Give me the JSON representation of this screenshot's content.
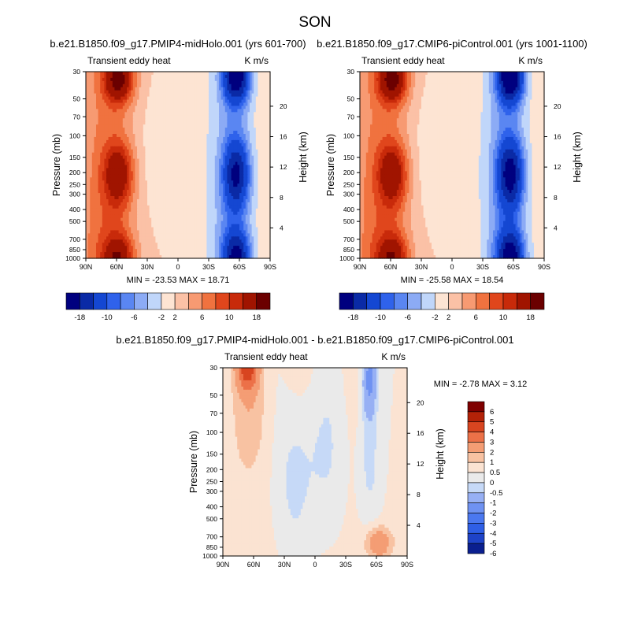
{
  "page": {
    "title": "SON"
  },
  "colors": {
    "standard": [
      "#00007f",
      "#0a2aa6",
      "#1447d2",
      "#2f62eb",
      "#5a86f2",
      "#8cabf5",
      "#c0d6fa",
      "#fde4d3",
      "#fbc1a6",
      "#f79a72",
      "#f0723f",
      "#e0461c",
      "#c82a0a",
      "#a01400",
      "#6b0000"
    ],
    "difference": [
      "#0a1f8f",
      "#1e43c8",
      "#2f5fe6",
      "#4b78f0",
      "#6f92f2",
      "#97b0f4",
      "#c6d9f7",
      "#eaeaea",
      "#fbe3d2",
      "#f8c2a2",
      "#f49d74",
      "#ec7148",
      "#d84520",
      "#b32208",
      "#7f0000"
    ]
  },
  "chart_data": [
    {
      "type": "contour",
      "title_center": "b.e21.B1850.f09_g17.PMIP4-midHolo.001 (yrs 601-700)",
      "title_left": "Transient eddy heat",
      "title_right": "K m/s",
      "ylabel": "Pressure (mb)",
      "ylabel_right": "Height (km)",
      "x_ticks": [
        "90N",
        "60N",
        "30N",
        "0",
        "30S",
        "60S",
        "90S"
      ],
      "y_ticks": [
        "30",
        "50",
        "70",
        "100",
        "150",
        "200",
        "250",
        "300",
        "400",
        "500",
        "700",
        "850",
        "1000"
      ],
      "y_ticks_right": [
        "20",
        "16",
        "12",
        "8",
        "4"
      ],
      "stats": "MIN = -23.53   MAX =  18.71",
      "scale": 1.0,
      "colorbar": {
        "orientation": "horizontal",
        "labels": [
          "-18",
          "-10",
          "-6",
          "-2",
          "2",
          "6",
          "10",
          "18"
        ]
      }
    },
    {
      "type": "contour",
      "title_center": "b.e21.B1850.f09_g17.CMIP6-piControl.001 (yrs 1001-1100)",
      "title_left": "Transient eddy heat",
      "title_right": "K m/s",
      "ylabel": "Pressure (mb)",
      "ylabel_right": "Height (km)",
      "x_ticks": [
        "90N",
        "60N",
        "30N",
        "0",
        "30S",
        "60S",
        "90S"
      ],
      "y_ticks": [
        "30",
        "50",
        "70",
        "100",
        "150",
        "200",
        "250",
        "300",
        "400",
        "500",
        "700",
        "850",
        "1000"
      ],
      "y_ticks_right": [
        "20",
        "16",
        "12",
        "8",
        "4"
      ],
      "stats": "MIN = -25.58   MAX =  18.54",
      "scale": 1.09,
      "colorbar": {
        "orientation": "horizontal",
        "labels": [
          "-18",
          "-10",
          "-6",
          "-2",
          "2",
          "6",
          "10",
          "18"
        ]
      }
    },
    {
      "type": "contour",
      "title_center": "b.e21.B1850.f09_g17.PMIP4-midHolo.001 - b.e21.B1850.f09_g17.CMIP6-piControl.001",
      "title_left": "Transient eddy heat",
      "title_right": "K m/s",
      "ylabel": "Pressure (mb)",
      "ylabel_right": "Height (km)",
      "x_ticks": [
        "90N",
        "60N",
        "30N",
        "0",
        "30S",
        "60S",
        "90S"
      ],
      "y_ticks": [
        "30",
        "50",
        "70",
        "100",
        "150",
        "200",
        "250",
        "300",
        "400",
        "500",
        "700",
        "850",
        "1000"
      ],
      "y_ticks_right": [
        "20",
        "16",
        "12",
        "8",
        "4"
      ],
      "stats": "MIN =  -2.78   MAX =   3.12",
      "colorbar": {
        "orientation": "vertical",
        "labels": [
          "6",
          "5",
          "4",
          "3",
          "2",
          "1",
          "0.5",
          "0",
          "-0.5",
          "-1",
          "-2",
          "-3",
          "-4",
          "-5",
          "-6"
        ]
      }
    }
  ]
}
